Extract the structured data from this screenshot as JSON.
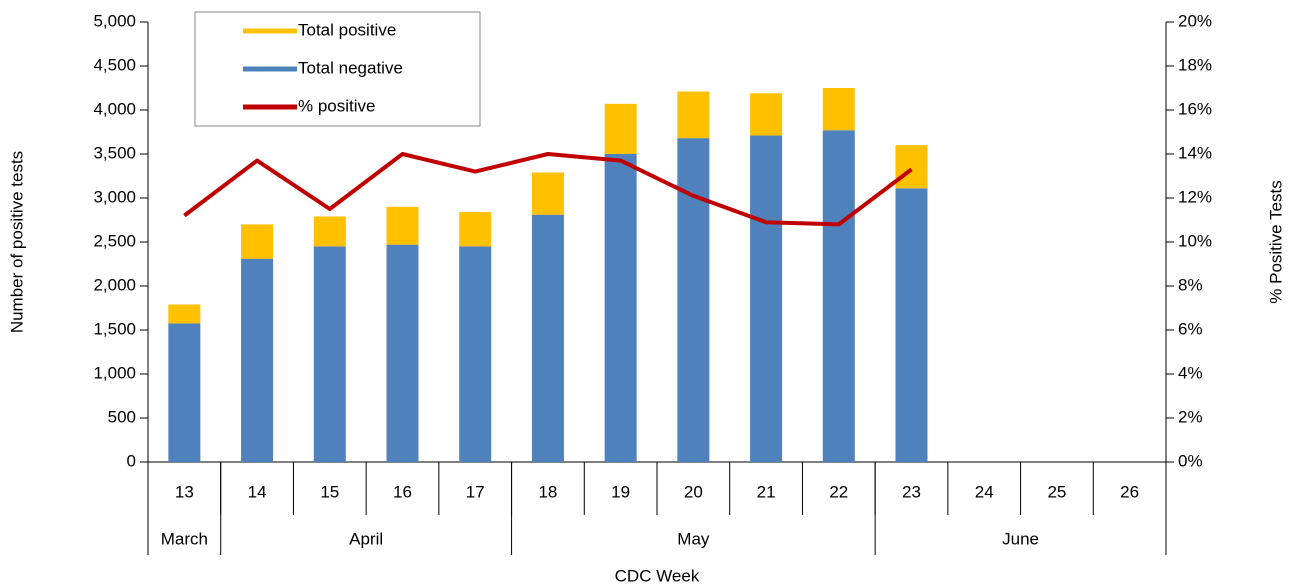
{
  "chart_data": {
    "type": "bar",
    "x_label": "CDC Week",
    "y_label": "Number of positive tests",
    "y2_label": "% Positive Tests",
    "categories": [
      "13",
      "14",
      "15",
      "16",
      "17",
      "18",
      "19",
      "20",
      "21",
      "22",
      "23",
      "24",
      "25",
      "26"
    ],
    "x_groups": [
      {
        "label": "March",
        "span": 1
      },
      {
        "label": "April",
        "span": 4
      },
      {
        "label": "May",
        "span": 5
      },
      {
        "label": "June",
        "span": 4
      }
    ],
    "series": [
      {
        "name": "Total positive",
        "type": "bar",
        "color": "#ffc000",
        "values": [
          215,
          390,
          340,
          430,
          390,
          480,
          570,
          530,
          480,
          480,
          490,
          null,
          null,
          null
        ]
      },
      {
        "name": "Total negative",
        "type": "bar",
        "color": "#4f81bd",
        "values": [
          1575,
          2310,
          2450,
          2470,
          2450,
          2810,
          3500,
          3680,
          3710,
          3770,
          3110,
          null,
          null,
          null
        ]
      },
      {
        "name": "% positive",
        "type": "line",
        "axis": "y2",
        "color": "#c00000",
        "values": [
          11.2,
          13.7,
          11.5,
          14.0,
          13.2,
          14.0,
          13.7,
          12.1,
          10.9,
          10.8,
          13.3,
          null,
          null,
          null
        ]
      }
    ],
    "ylim": [
      0,
      5000
    ],
    "yticks": [
      0,
      500,
      {
        "value": 1000,
        "label": "1,000"
      },
      {
        "value": 1500,
        "label": "1,500"
      },
      {
        "value": 2000,
        "label": "2,000"
      },
      {
        "value": 2500,
        "label": "2,500"
      },
      {
        "value": 3000,
        "label": "3,000"
      },
      {
        "value": 3500,
        "label": "3,500"
      },
      {
        "value": 4000,
        "label": "4,000"
      },
      {
        "value": 4500,
        "label": "4,500"
      },
      {
        "value": 5000,
        "label": "5,000"
      }
    ],
    "y2lim": [
      0,
      20
    ],
    "y2ticks": [
      {
        "value": 0,
        "label": "0%"
      },
      {
        "value": 2,
        "label": "2%"
      },
      {
        "value": 4,
        "label": "4%"
      },
      {
        "value": 6,
        "label": "6%"
      },
      {
        "value": 8,
        "label": "8%"
      },
      {
        "value": 10,
        "label": "10%"
      },
      {
        "value": 12,
        "label": "12%"
      },
      {
        "value": 14,
        "label": "14%"
      },
      {
        "value": 16,
        "label": "16%"
      },
      {
        "value": 18,
        "label": "18%"
      },
      {
        "value": 20,
        "label": "20%"
      }
    ],
    "legend": "top-left"
  }
}
